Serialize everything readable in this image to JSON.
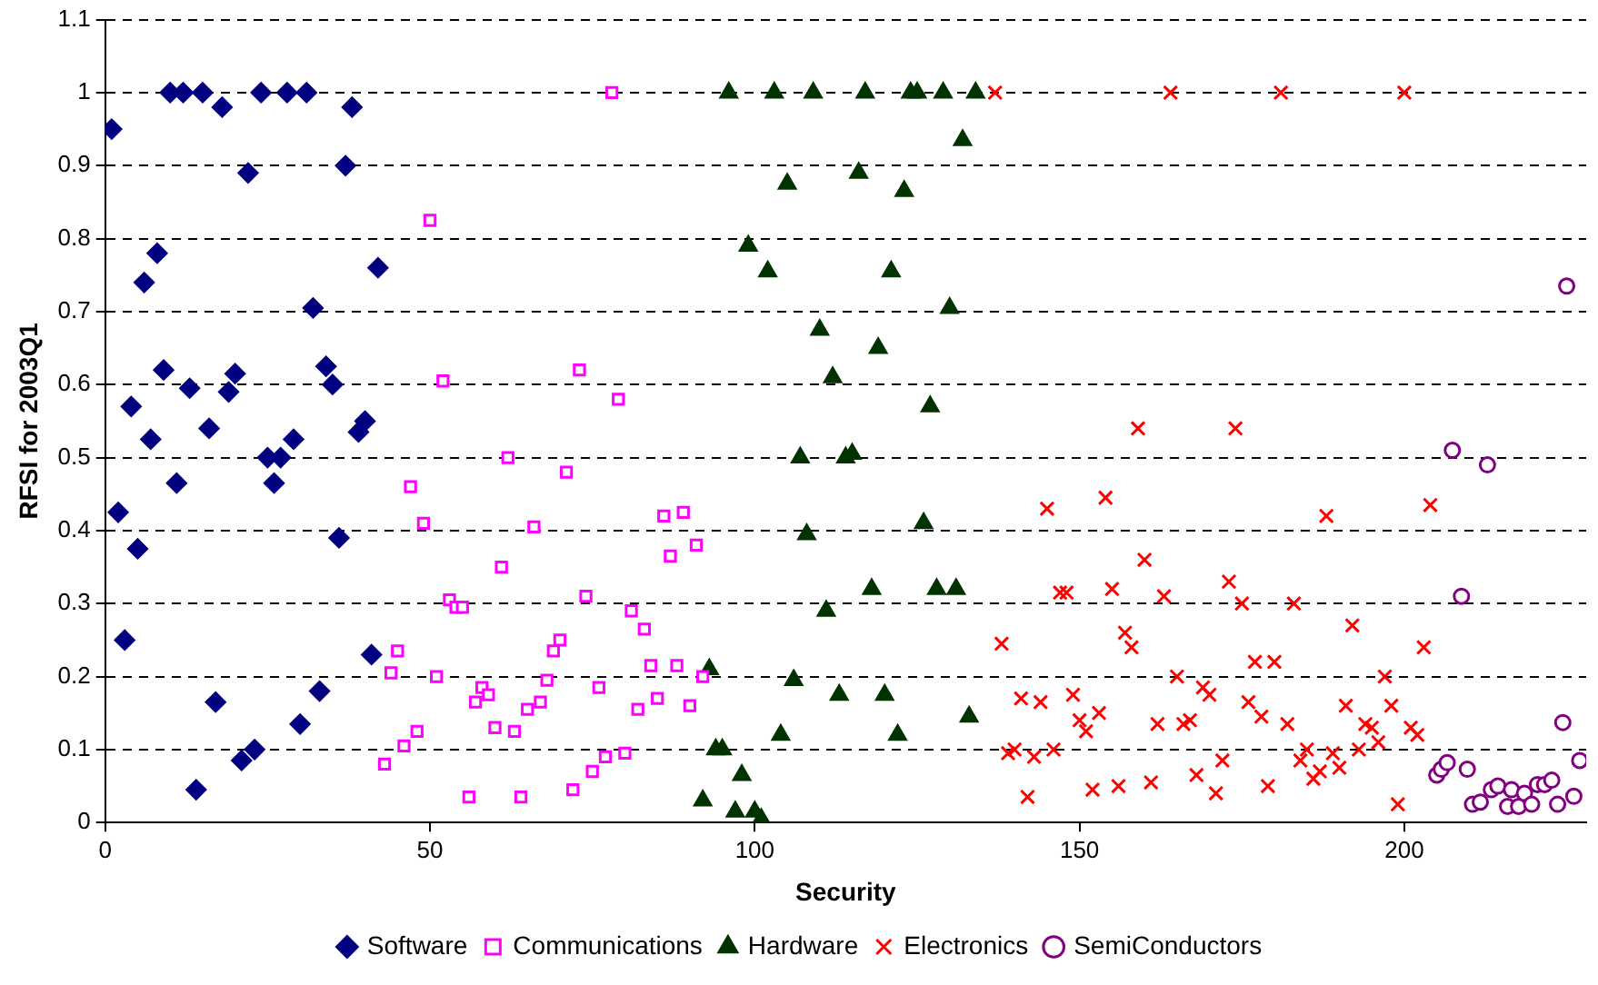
{
  "chart_data": {
    "type": "scatter",
    "xlabel": "Security",
    "ylabel": "RFSI for 2003Q1",
    "xlim": [
      0,
      228
    ],
    "xticks": [
      0,
      50,
      100,
      150,
      200
    ],
    "ylim": [
      0,
      1.1
    ],
    "yticks": [
      0,
      0.1,
      0.2,
      0.3,
      0.4,
      0.5,
      0.6,
      0.7,
      0.8,
      0.9,
      1,
      1.1
    ],
    "grid": "y",
    "legend": "bottom",
    "series": [
      {
        "name": "Software",
        "color": "#000080",
        "marker": "diamond",
        "x": [
          1,
          2,
          3,
          4,
          5,
          6,
          7,
          8,
          9,
          10,
          11,
          12,
          13,
          14,
          15,
          16,
          17,
          18,
          19,
          20,
          21,
          22,
          23,
          24,
          25,
          26,
          27,
          28,
          29,
          30,
          31,
          32,
          33,
          34,
          35,
          36,
          37,
          38,
          39,
          40,
          41,
          42
        ],
        "values": [
          0.95,
          0.425,
          0.25,
          0.57,
          0.375,
          0.74,
          0.525,
          0.78,
          0.62,
          1.0,
          0.465,
          1.0,
          0.595,
          0.045,
          1.0,
          0.54,
          0.165,
          0.98,
          0.59,
          0.615,
          0.085,
          0.89,
          0.1,
          1.0,
          0.5,
          0.465,
          0.5,
          1.0,
          0.525,
          0.135,
          1.0,
          0.705,
          0.18,
          0.625,
          0.6,
          0.39,
          0.9,
          0.98,
          0.535,
          0.55,
          0.23,
          0.76
        ]
      },
      {
        "name": "Communications",
        "color": "#ff00ff",
        "marker": "square",
        "x": [
          43,
          44,
          45,
          46,
          47,
          48,
          49,
          50,
          51,
          52,
          53,
          54,
          55,
          56,
          57,
          58,
          59,
          60,
          61,
          62,
          63,
          64,
          65,
          66,
          67,
          68,
          69,
          70,
          71,
          72,
          73,
          74,
          75,
          76,
          77,
          78,
          79,
          80,
          81,
          82,
          83,
          84,
          85,
          86,
          87,
          88,
          89,
          90,
          91,
          92
        ],
        "values": [
          0.08,
          0.205,
          0.235,
          0.105,
          0.46,
          0.125,
          0.41,
          0.825,
          0.2,
          0.605,
          0.305,
          0.295,
          0.295,
          0.035,
          0.165,
          0.185,
          0.175,
          0.13,
          0.35,
          0.5,
          0.125,
          0.035,
          0.155,
          0.405,
          0.165,
          0.195,
          0.235,
          0.25,
          0.48,
          0.045,
          0.62,
          0.31,
          0.07,
          0.185,
          0.09,
          1.0,
          0.58,
          0.095,
          0.29,
          0.155,
          0.265,
          0.215,
          0.17,
          0.42,
          0.365,
          0.215,
          0.425,
          0.16,
          0.38,
          0.2
        ]
      },
      {
        "name": "Hardware",
        "color": "#003300",
        "marker": "triangle",
        "x": [
          92,
          93,
          94,
          95,
          96,
          97,
          98,
          99,
          100,
          101,
          102,
          103,
          104,
          105,
          106,
          107,
          108,
          109,
          110,
          111,
          112,
          113,
          114,
          115,
          116,
          117,
          118,
          119,
          120,
          121,
          122,
          123,
          124,
          125,
          126,
          127,
          128,
          129,
          130,
          131,
          132,
          133,
          134
        ],
        "values": [
          0.03,
          0.21,
          0.1,
          0.1,
          1.0,
          0.015,
          0.065,
          0.79,
          0.015,
          0.005,
          0.755,
          1.0,
          0.12,
          0.875,
          0.195,
          0.5,
          0.395,
          1.0,
          0.675,
          0.29,
          0.61,
          0.175,
          0.5,
          0.505,
          0.89,
          1.0,
          0.32,
          0.65,
          0.175,
          0.755,
          0.12,
          0.865,
          1.0,
          1.0,
          0.41,
          0.57,
          0.32,
          1.0,
          0.705,
          0.32,
          0.935,
          0.145,
          1.0
        ]
      },
      {
        "name": "Electronics",
        "color": "#ff0000",
        "marker": "cross",
        "x": [
          137,
          138,
          139,
          140,
          141,
          142,
          143,
          144,
          145,
          146,
          147,
          148,
          149,
          150,
          151,
          152,
          153,
          154,
          155,
          156,
          157,
          158,
          159,
          160,
          161,
          162,
          163,
          164,
          165,
          166,
          167,
          168,
          169,
          170,
          171,
          172,
          173,
          174,
          175,
          176,
          177,
          178,
          179,
          180,
          181,
          182,
          183,
          184,
          185,
          186,
          187,
          188,
          189,
          190,
          191,
          192,
          193,
          194,
          195,
          196,
          197,
          198,
          199,
          200,
          201,
          202,
          203,
          204
        ],
        "values": [
          1.0,
          0.245,
          0.095,
          0.1,
          0.17,
          0.035,
          0.09,
          0.165,
          0.43,
          0.1,
          0.315,
          0.315,
          0.175,
          0.14,
          0.125,
          0.045,
          0.15,
          0.445,
          0.32,
          0.05,
          0.26,
          0.24,
          0.54,
          0.36,
          0.055,
          0.135,
          0.31,
          1.0,
          0.2,
          0.135,
          0.14,
          0.065,
          0.185,
          0.175,
          0.04,
          0.085,
          0.33,
          0.54,
          0.3,
          0.165,
          0.22,
          0.145,
          0.05,
          0.22,
          1.0,
          0.135,
          0.3,
          0.085,
          0.1,
          0.06,
          0.07,
          0.42,
          0.095,
          0.075,
          0.16,
          0.27,
          0.1,
          0.135,
          0.13,
          0.11,
          0.2,
          0.16,
          0.025,
          1.0,
          0.13,
          0.12,
          0.24,
          0.435
        ]
      },
      {
        "name": "SemiConductors",
        "color": "#800080",
        "marker": "circle",
        "x": [
          205,
          205.7,
          206.6,
          207.4,
          208.8,
          209.7,
          210.5,
          211.7,
          212.8,
          213.4,
          214.4,
          215.9,
          216.5,
          217.6,
          218.5,
          219.6,
          220.5,
          221.6,
          222.7,
          223.6,
          224.4,
          225,
          226.1,
          227
        ],
        "values": [
          0.065,
          0.073,
          0.082,
          0.51,
          0.31,
          0.073,
          0.025,
          0.028,
          0.49,
          0.045,
          0.05,
          0.022,
          0.045,
          0.022,
          0.04,
          0.025,
          0.052,
          0.052,
          0.058,
          0.025,
          0.137,
          0.735,
          0.036,
          0.085
        ]
      }
    ]
  }
}
